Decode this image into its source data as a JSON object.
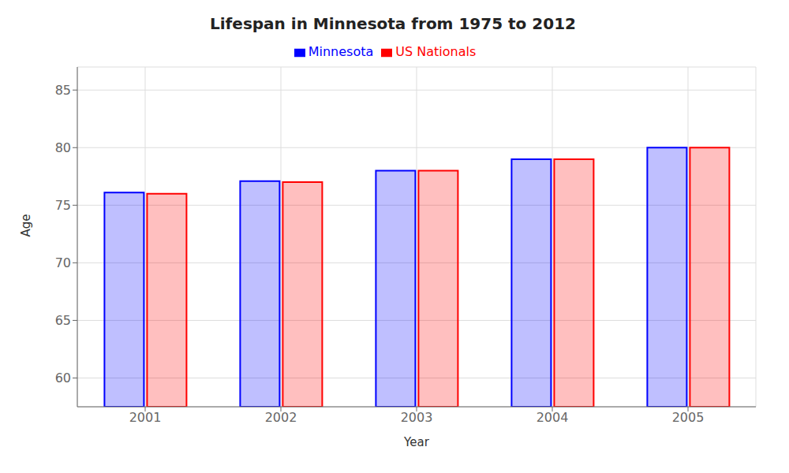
{
  "chart_data": {
    "type": "bar",
    "title": "Lifespan in Minnesota from 1975 to 2012",
    "xlabel": "Year",
    "ylabel": "Age",
    "categories": [
      "2001",
      "2002",
      "2003",
      "2004",
      "2005"
    ],
    "series": [
      {
        "name": "Minnesota",
        "color": "#0000ff",
        "values": [
          76.1,
          77.1,
          78.0,
          79.0,
          80.0
        ]
      },
      {
        "name": "US Nationals",
        "color": "#ff0000",
        "values": [
          76.0,
          77.0,
          78.0,
          79.0,
          80.0
        ]
      }
    ],
    "ylim": [
      57.5,
      87.0
    ],
    "yticks": [
      60,
      65,
      70,
      75,
      80,
      85
    ],
    "grid": true,
    "legend": "top"
  }
}
